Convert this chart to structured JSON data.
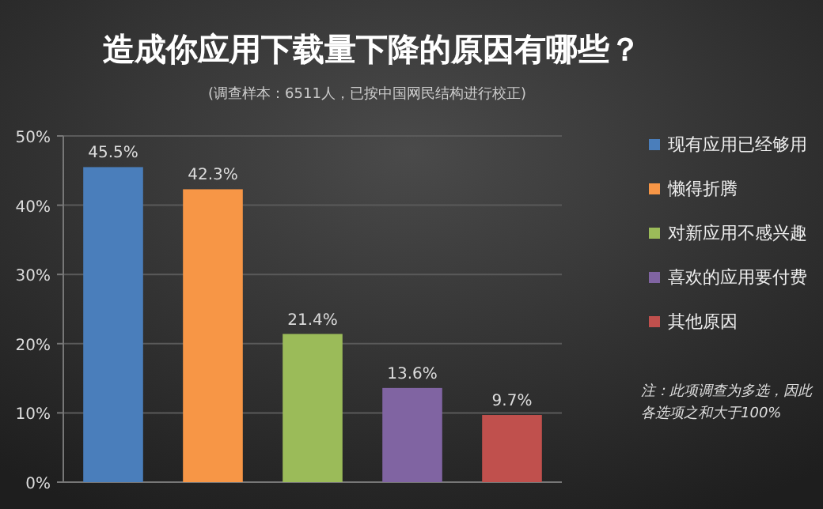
{
  "chart_data": {
    "type": "bar",
    "title": "造成你应用下载量下降的原因有哪些？",
    "subtitle": "(调查样本：6511人，已按中国网民结构进行校正)",
    "categories": [
      null,
      null,
      null,
      null,
      null
    ],
    "series": [
      {
        "name": "现有应用已经够用",
        "color": "#4a7ebb",
        "values": [
          45.5,
          null,
          null,
          null,
          null
        ],
        "value_labels": [
          "45.5%",
          null,
          null,
          null,
          null
        ]
      },
      {
        "name": "懒得折腾",
        "color": "#f79646",
        "values": [
          null,
          42.3,
          null,
          null,
          null
        ],
        "value_labels": [
          null,
          "42.3%",
          null,
          null,
          null
        ]
      },
      {
        "name": "对新应用不感兴趣",
        "color": "#9bbb59",
        "values": [
          null,
          null,
          21.4,
          null,
          null
        ],
        "value_labels": [
          null,
          null,
          "21.4%",
          null,
          null
        ]
      },
      {
        "name": "喜欢的应用要付费",
        "color": "#8064a2",
        "values": [
          null,
          null,
          null,
          13.6,
          null
        ],
        "value_labels": [
          null,
          null,
          null,
          "13.6%",
          null
        ]
      },
      {
        "name": "其他原因",
        "color": "#c0504d",
        "values": [
          null,
          null,
          null,
          null,
          9.7
        ],
        "value_labels": [
          null,
          null,
          null,
          null,
          "9.7%"
        ]
      }
    ],
    "ylim": [
      0,
      50
    ],
    "yticks": [
      {
        "value": 0,
        "label": "0%"
      },
      {
        "value": 10,
        "label": "10%"
      },
      {
        "value": 20,
        "label": "20%"
      },
      {
        "value": 30,
        "label": "30%"
      },
      {
        "value": 40,
        "label": "40%"
      },
      {
        "value": 50,
        "label": "50%"
      }
    ],
    "grid": "y",
    "legend": "right",
    "annotations": [
      "注：此项调查为多选，因此各选项之和大于100%"
    ]
  }
}
